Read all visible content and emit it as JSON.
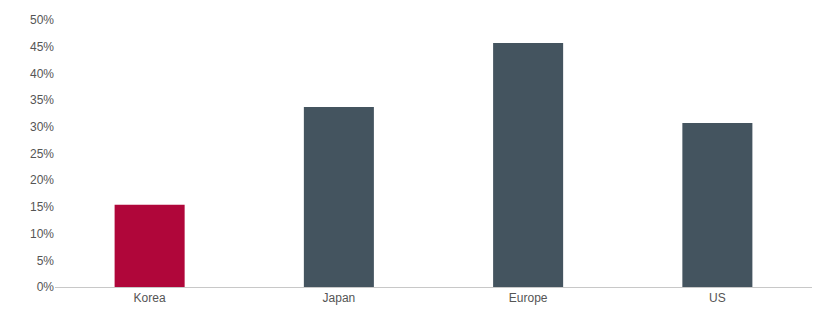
{
  "chart_data": {
    "type": "bar",
    "categories": [
      "Korea",
      "Japan",
      "Europe",
      "US"
    ],
    "values": [
      15.4,
      33.7,
      45.7,
      30.7
    ],
    "colors": [
      "#b0063a",
      "#44545f",
      "#44545f",
      "#44545f"
    ],
    "ylim": [
      0,
      50
    ],
    "yticks": [
      {
        "value": 0,
        "label": "0%"
      },
      {
        "value": 5,
        "label": "5%"
      },
      {
        "value": 10,
        "label": "10%"
      },
      {
        "value": 15,
        "label": "15%"
      },
      {
        "value": 20,
        "label": "20%"
      },
      {
        "value": 25,
        "label": "25%"
      },
      {
        "value": 30,
        "label": "30%"
      },
      {
        "value": 35,
        "label": "35%"
      },
      {
        "value": 40,
        "label": "40%"
      },
      {
        "value": 45,
        "label": "45%"
      },
      {
        "value": 50,
        "label": "50%"
      }
    ],
    "grid": false
  }
}
